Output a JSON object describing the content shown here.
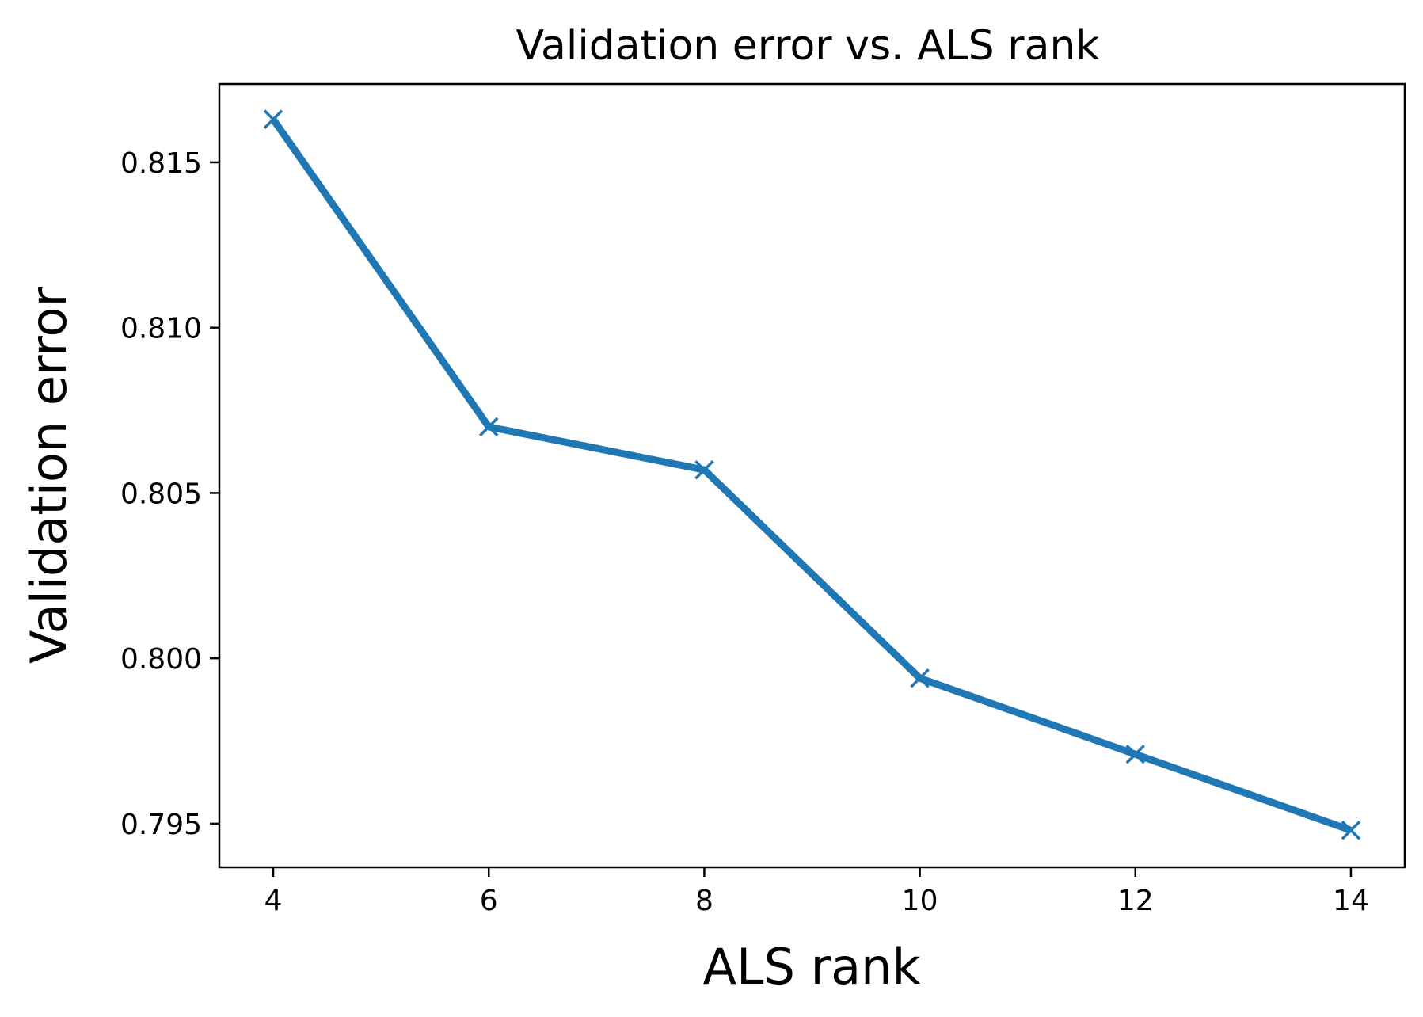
{
  "chart_data": {
    "type": "line",
    "title": "Validation error vs. ALS rank",
    "xlabel": "ALS rank",
    "ylabel": "Validation error",
    "x": [
      4,
      6,
      8,
      10,
      12,
      14
    ],
    "series": [
      {
        "values": [
          0.8163,
          0.807,
          0.8057,
          0.7994,
          0.7971,
          0.7948
        ],
        "color": "#1f77b4",
        "marker": "x"
      }
    ],
    "xticks": [
      4,
      6,
      8,
      10,
      12,
      14
    ],
    "xtick_labels": [
      "4",
      "6",
      "8",
      "10",
      "12",
      "14"
    ],
    "yticks": [
      0.795,
      0.8,
      0.805,
      0.81,
      0.815
    ],
    "ytick_labels": [
      "0.795",
      "0.800",
      "0.805",
      "0.810",
      "0.815"
    ],
    "xlim": [
      3.5,
      14.5
    ],
    "ylim": [
      0.79368,
      0.81737
    ],
    "grid": false,
    "legend": false
  }
}
